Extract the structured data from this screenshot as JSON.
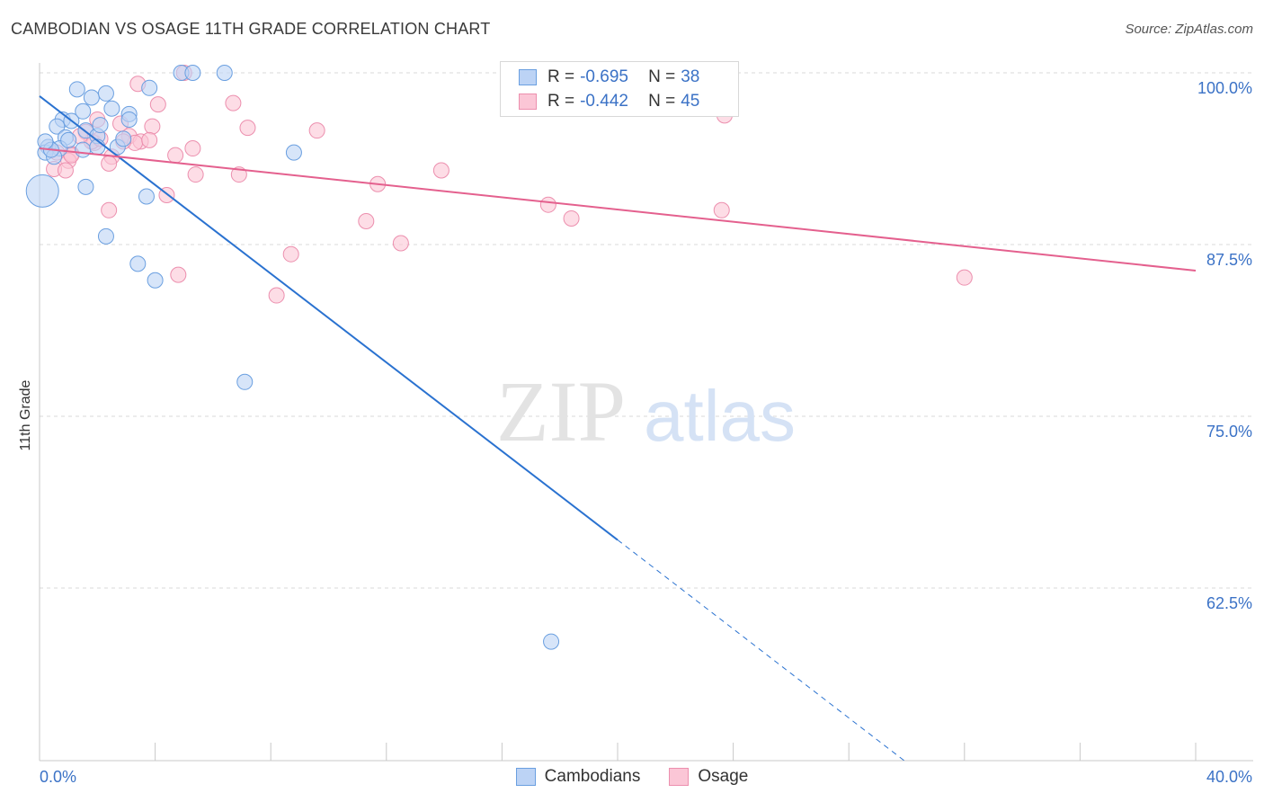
{
  "title": "CAMBODIAN VS OSAGE 11TH GRADE CORRELATION CHART",
  "source": "Source: ZipAtlas.com",
  "watermark": {
    "zip": "ZIP",
    "atlas": "atlas"
  },
  "legend_top": [
    {
      "r_label": "R =",
      "r_value": "-0.695",
      "n_label": "N =",
      "n_value": "38"
    },
    {
      "r_label": "R =",
      "r_value": "-0.442",
      "n_label": "N =",
      "n_value": "45"
    }
  ],
  "legend_bottom": [
    "Cambodians",
    "Osage"
  ],
  "colors": {
    "cambodians_fill": "#bcd3f5",
    "cambodians_stroke": "#6a9fe0",
    "cambodians_line": "#2a72d0",
    "osage_fill": "#fbc6d6",
    "osage_stroke": "#ec8fae",
    "osage_line": "#e4608e",
    "tick_label": "#3b72c6",
    "grid": "#d9d9d9"
  },
  "chart_data": {
    "type": "scatter",
    "title": "CAMBODIAN VS OSAGE 11TH GRADE CORRELATION CHART",
    "xlabel": "",
    "ylabel": "11th Grade",
    "xlim": [
      0,
      40
    ],
    "ylim": [
      50,
      100
    ],
    "x_ticks": [
      "0.0%",
      "40.0%"
    ],
    "y_ticks": [
      {
        "value": 100,
        "label": "100.0%"
      },
      {
        "value": 87.5,
        "label": "87.5%"
      },
      {
        "value": 75,
        "label": "75.0%"
      },
      {
        "value": 62.5,
        "label": "62.5%"
      }
    ],
    "grid": "horizontal dashed",
    "series": [
      {
        "name": "Cambodians",
        "r": -0.695,
        "n": 38,
        "trend": {
          "x0": 0,
          "y0": 98.3,
          "x1": 20,
          "y1": 66.0,
          "dash_x1": 30,
          "dash_y1": 49.8
        },
        "points": [
          [
            4.9,
            100
          ],
          [
            5.3,
            100
          ],
          [
            6.4,
            100
          ],
          [
            0.3,
            94.6
          ],
          [
            0.8,
            96.6
          ],
          [
            1.3,
            98.8
          ],
          [
            1.5,
            97.2
          ],
          [
            1.8,
            98.2
          ],
          [
            2.3,
            98.5
          ],
          [
            2.5,
            97.4
          ],
          [
            3.1,
            97.0
          ],
          [
            3.8,
            98.9
          ],
          [
            0.6,
            96.1
          ],
          [
            0.9,
            95.3
          ],
          [
            1.1,
            96.5
          ],
          [
            0.7,
            94.5
          ],
          [
            1.0,
            95.1
          ],
          [
            1.6,
            95.8
          ],
          [
            2.0,
            95.4
          ],
          [
            2.7,
            94.6
          ],
          [
            0.2,
            94.2
          ],
          [
            0.5,
            93.9
          ],
          [
            1.5,
            94.4
          ],
          [
            2.0,
            94.6
          ],
          [
            0.4,
            94.4
          ],
          [
            1.6,
            91.7
          ],
          [
            3.7,
            91.0
          ],
          [
            2.3,
            88.1
          ],
          [
            3.4,
            86.1
          ],
          [
            4.0,
            84.9
          ],
          [
            8.8,
            94.2
          ],
          [
            7.1,
            77.5
          ],
          [
            17.7,
            58.6
          ],
          [
            3.1,
            96.6
          ],
          [
            2.1,
            96.2
          ],
          [
            0.2,
            95.0
          ],
          [
            0.1,
            91.4
          ],
          [
            2.9,
            95.2
          ]
        ]
      },
      {
        "name": "Osage",
        "r": -0.442,
        "n": 45,
        "trend": {
          "x0": 0,
          "y0": 94.5,
          "x1": 40,
          "y1": 85.6
        },
        "points": [
          [
            5.0,
            100
          ],
          [
            3.4,
            99.2
          ],
          [
            4.1,
            97.7
          ],
          [
            6.7,
            97.8
          ],
          [
            7.2,
            96.0
          ],
          [
            9.6,
            95.8
          ],
          [
            3.9,
            96.1
          ],
          [
            2.8,
            96.3
          ],
          [
            2.0,
            96.6
          ],
          [
            1.6,
            95.7
          ],
          [
            1.9,
            94.9
          ],
          [
            3.1,
            95.4
          ],
          [
            3.5,
            95.0
          ],
          [
            3.3,
            94.9
          ],
          [
            2.9,
            95.0
          ],
          [
            5.3,
            94.5
          ],
          [
            1.1,
            94.1
          ],
          [
            2.5,
            93.9
          ],
          [
            2.4,
            93.4
          ],
          [
            3.8,
            95.1
          ],
          [
            1.0,
            93.6
          ],
          [
            1.1,
            94.0
          ],
          [
            0.5,
            93.0
          ],
          [
            0.9,
            92.9
          ],
          [
            4.7,
            94.0
          ],
          [
            5.4,
            92.6
          ],
          [
            6.9,
            92.6
          ],
          [
            4.4,
            91.1
          ],
          [
            11.7,
            91.9
          ],
          [
            13.9,
            92.9
          ],
          [
            2.4,
            90.0
          ],
          [
            11.3,
            89.2
          ],
          [
            12.5,
            87.6
          ],
          [
            8.7,
            86.8
          ],
          [
            4.8,
            85.3
          ],
          [
            8.2,
            83.8
          ],
          [
            17.6,
            90.4
          ],
          [
            18.4,
            89.4
          ],
          [
            23.6,
            90.0
          ],
          [
            23.7,
            96.9
          ],
          [
            32.0,
            85.1
          ],
          [
            1.8,
            95.0
          ],
          [
            2.1,
            95.2
          ],
          [
            0.6,
            94.2
          ],
          [
            1.4,
            95.4
          ]
        ]
      }
    ]
  }
}
